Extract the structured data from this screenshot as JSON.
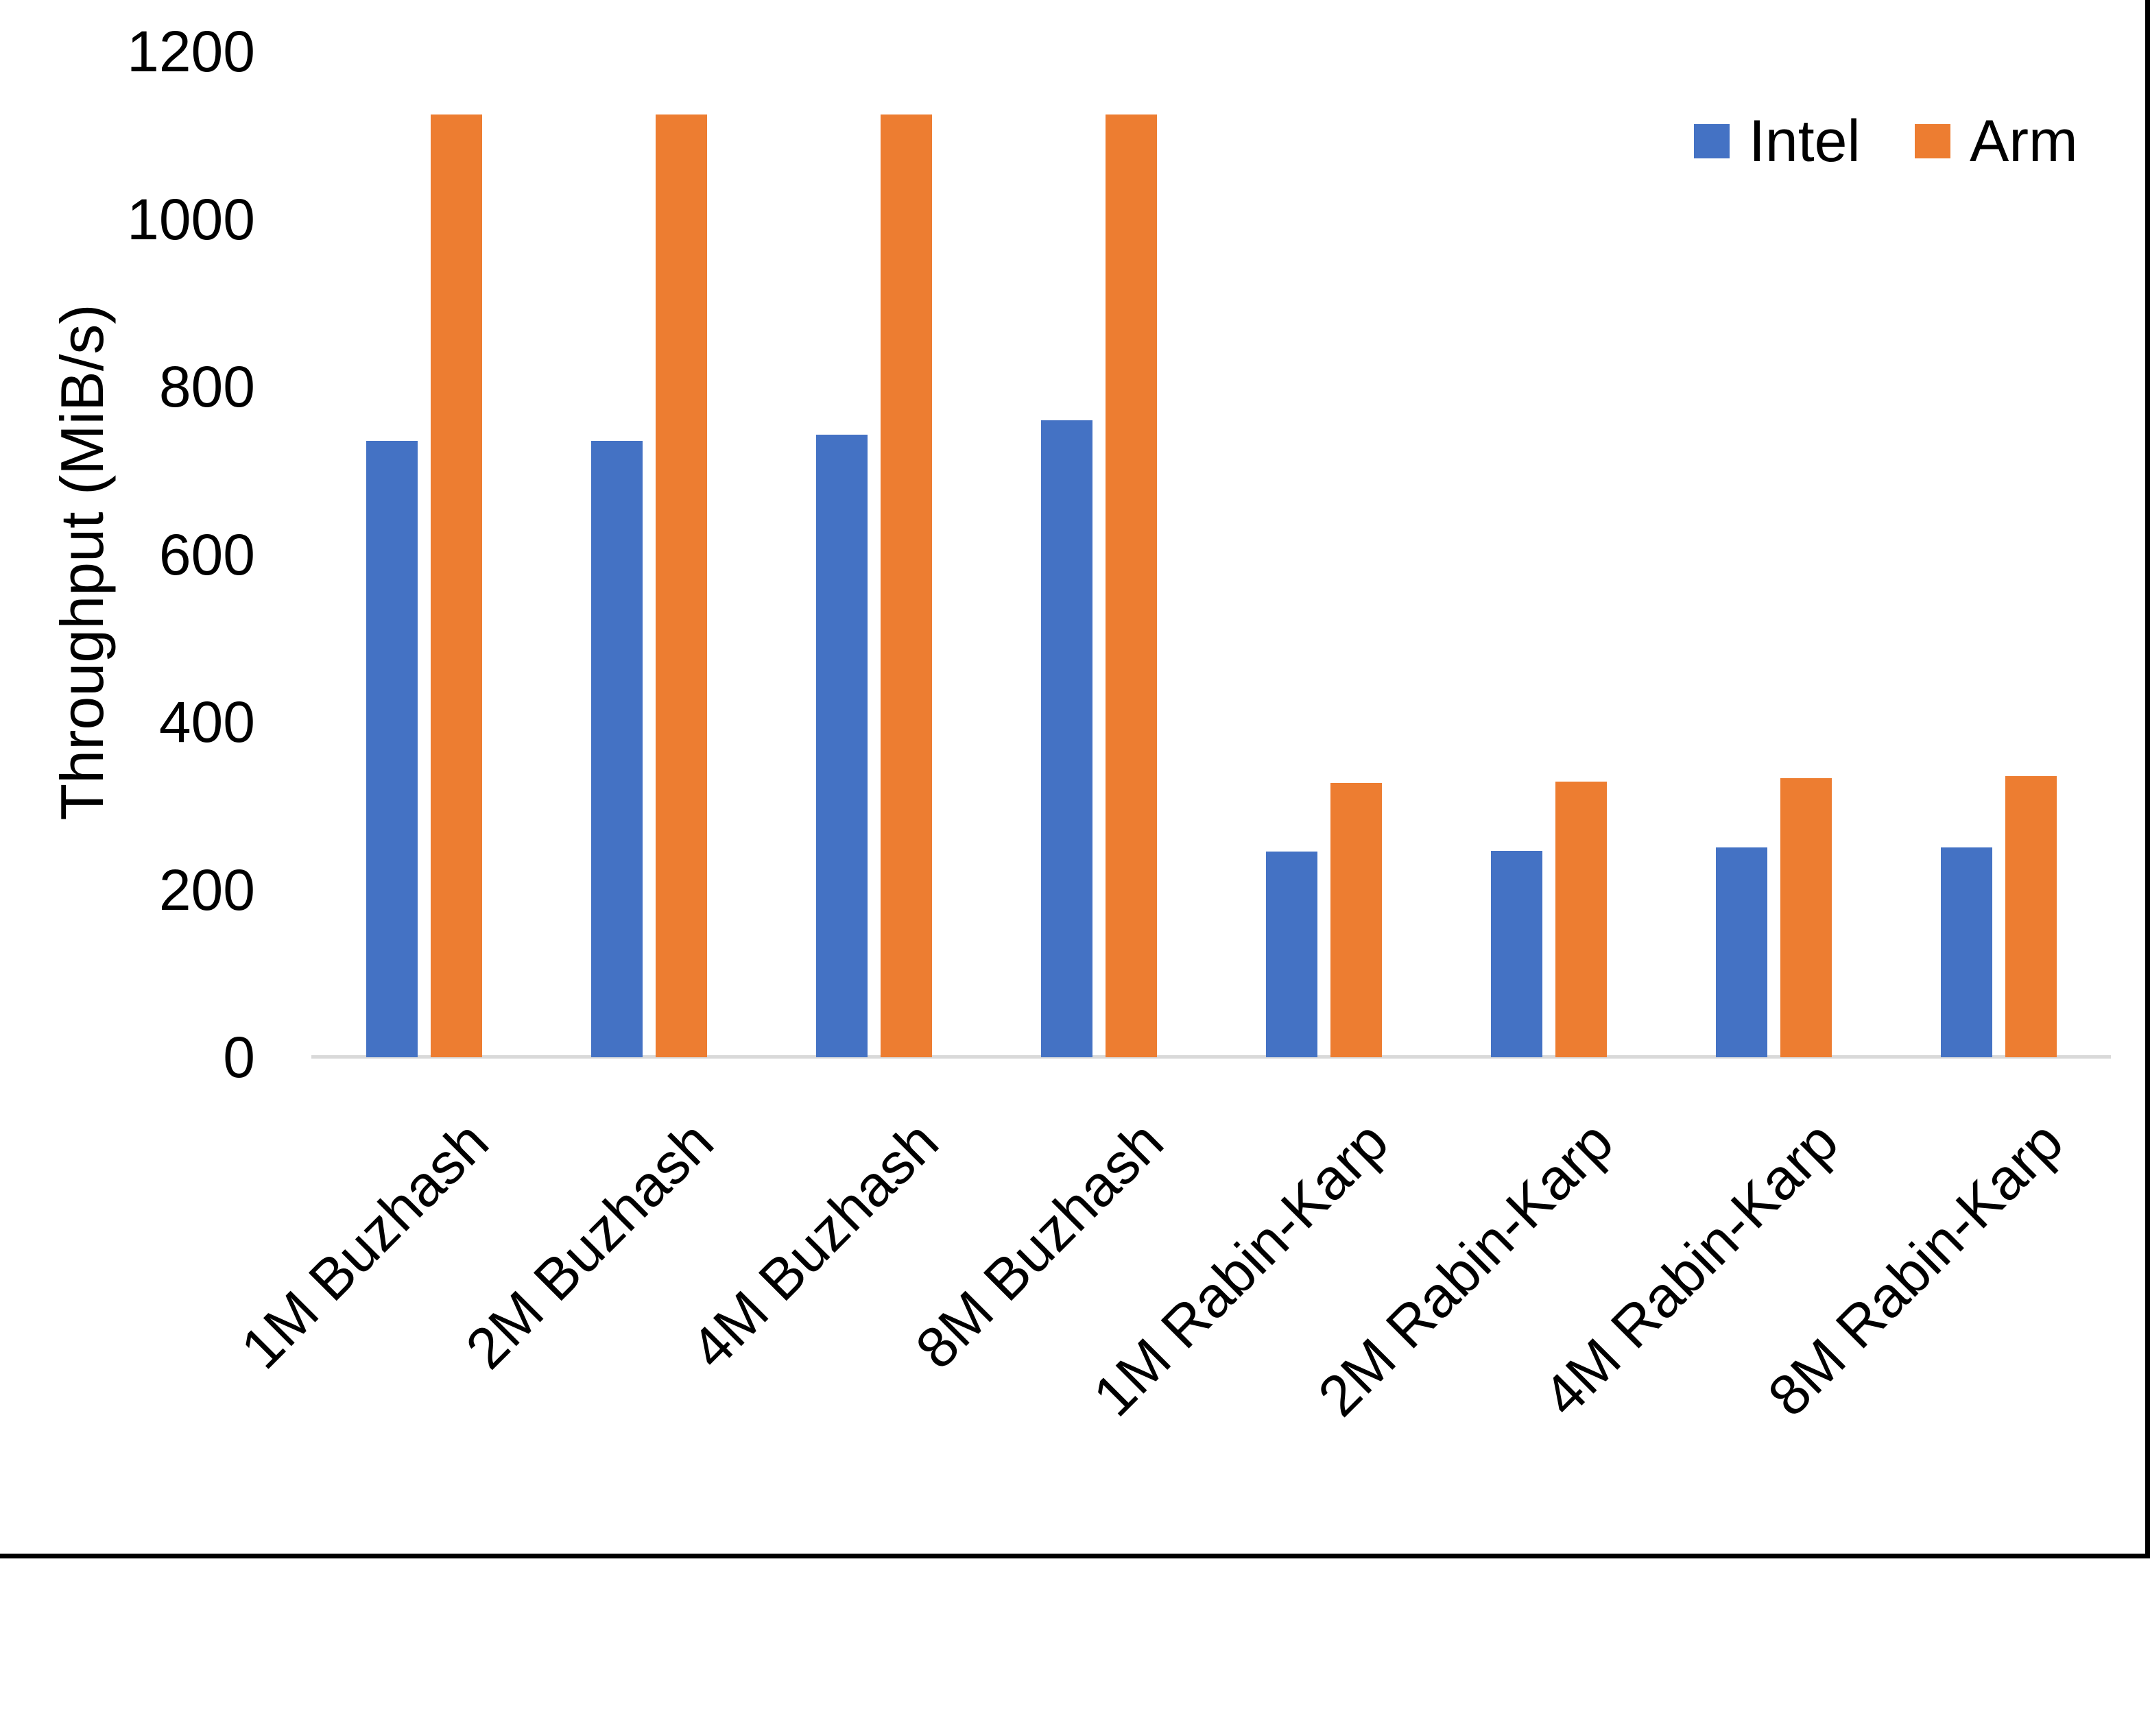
{
  "chart_data": {
    "type": "bar",
    "title": "",
    "xlabel": "",
    "ylabel": "Throughput (MiB/s)",
    "ylim": [
      0,
      1200
    ],
    "yticks": [
      0,
      200,
      400,
      600,
      800,
      1000,
      1200
    ],
    "grid": false,
    "legend_position": "top-right",
    "background_color": "#FFFFFF",
    "axis_line_color": "#D9D9D9",
    "categories": [
      "1M Buzhash",
      "2M Buzhash",
      "4M Buzhash",
      "8M Buzhash",
      "1M Rabin-Karp",
      "2M Rabin-Karp",
      "4M Rabin-Karp",
      "8M Rabin-Karp"
    ],
    "series": [
      {
        "name": "Intel",
        "color": "#4472C4",
        "values": [
          735,
          735,
          743,
          760,
          245,
          246,
          250,
          250
        ]
      },
      {
        "name": "Arm",
        "color": "#ED7D31",
        "values": [
          1125,
          1125,
          1125,
          1125,
          327,
          329,
          333,
          335
        ]
      }
    ]
  }
}
